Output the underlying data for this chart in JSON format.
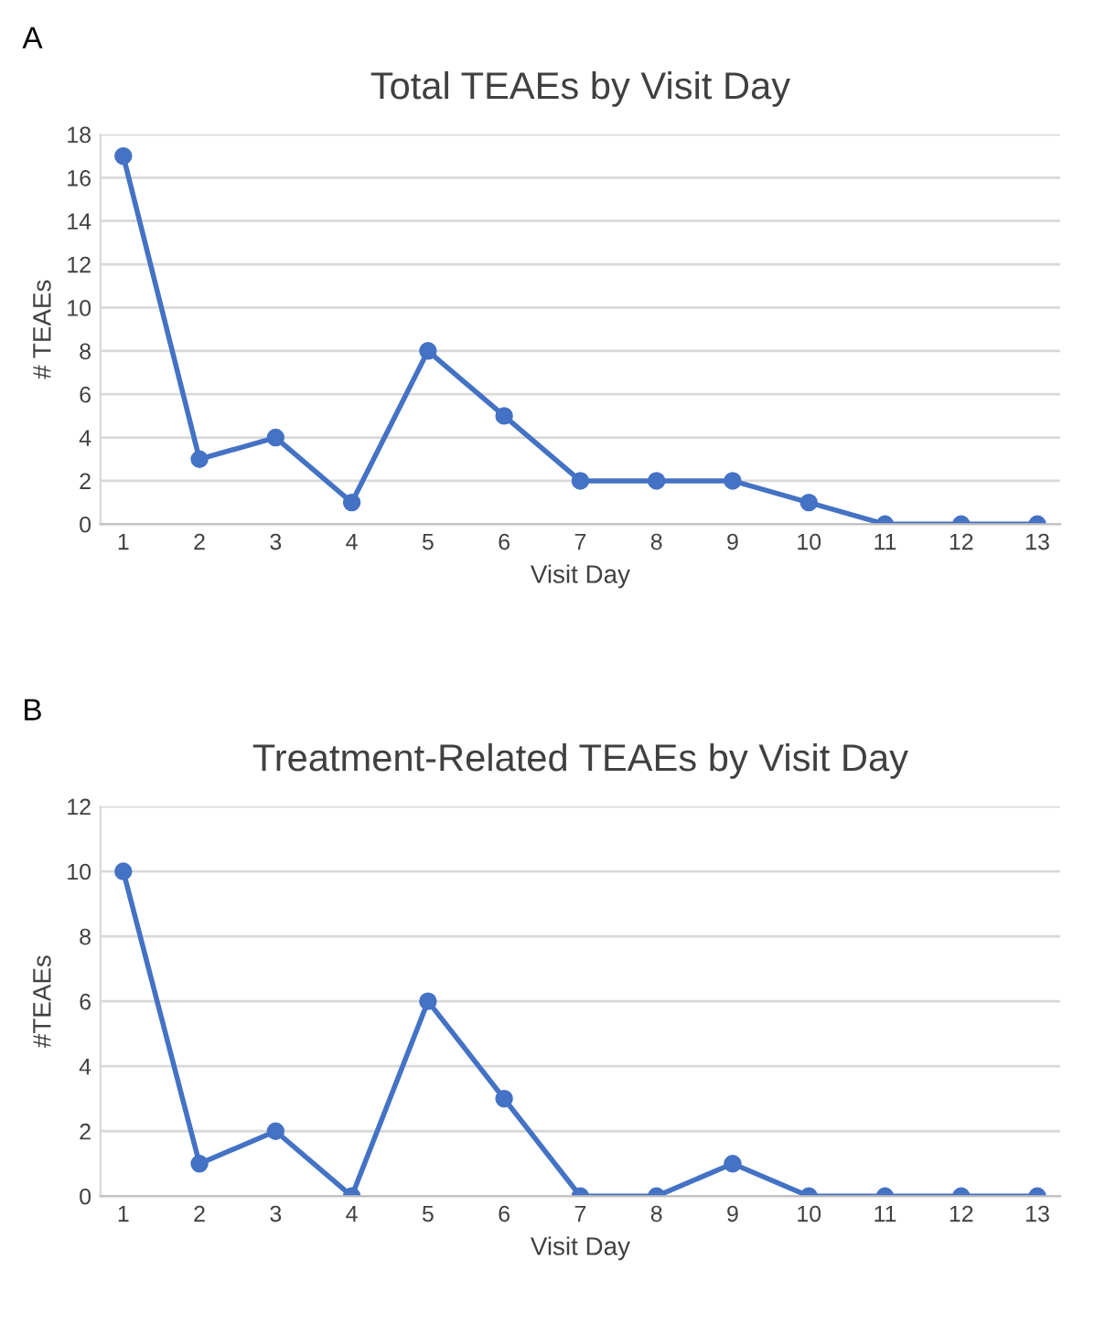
{
  "chart_data": [
    {
      "type": "line",
      "title": "Total TEAEs by Visit Day",
      "xlabel": "Visit Day",
      "ylabel": "# TEAEs",
      "annotations": [
        "A"
      ],
      "categories": [
        "1",
        "2",
        "3",
        "4",
        "5",
        "6",
        "7",
        "8",
        "9",
        "10",
        "11",
        "12",
        "13"
      ],
      "series": [
        {
          "color": "#4472c4",
          "values": [
            17,
            3,
            4,
            1,
            8,
            5,
            2,
            2,
            2,
            1,
            0,
            0,
            0
          ]
        }
      ],
      "ylim": [
        0,
        18
      ],
      "yticks": [
        0,
        2,
        4,
        6,
        8,
        10,
        12,
        14,
        16,
        18
      ],
      "grid": "y",
      "legend": false,
      "marker": "circle",
      "line_style": "solid"
    },
    {
      "type": "line",
      "title": "Treatment-Related TEAEs by Visit Day",
      "xlabel": "Visit Day",
      "ylabel": "#TEAEs",
      "annotations": [
        "B"
      ],
      "categories": [
        "1",
        "2",
        "3",
        "4",
        "5",
        "6",
        "7",
        "8",
        "9",
        "10",
        "11",
        "12",
        "13"
      ],
      "series": [
        {
          "color": "#4472c4",
          "values": [
            10,
            1,
            2,
            0,
            6,
            3,
            0,
            0,
            1,
            0,
            0,
            0,
            0
          ]
        }
      ],
      "ylim": [
        0,
        12
      ],
      "yticks": [
        0,
        2,
        4,
        6,
        8,
        10,
        12
      ],
      "grid": "y",
      "legend": false,
      "marker": "circle",
      "line_style": "solid"
    }
  ]
}
